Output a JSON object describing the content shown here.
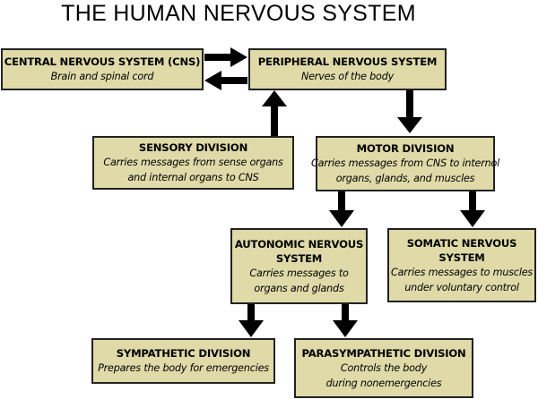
{
  "title": "THE HUMAN NERVOUS SYSTEM",
  "boxes": {
    "cns": {
      "head": [
        "CENTRAL NERVOUS SYSTEM (CNS)"
      ],
      "desc": [
        "Brain and spinal cord"
      ]
    },
    "pns": {
      "head": [
        "PERIPHERAL NERVOUS SYSTEM"
      ],
      "desc": [
        "Nerves of the body"
      ]
    },
    "sensory": {
      "head": [
        "SENSORY DIVISION"
      ],
      "desc": [
        "Carries messages from sense organs",
        "and internal organs to CNS"
      ]
    },
    "motor": {
      "head": [
        "MOTOR DIVISION"
      ],
      "desc": [
        "Carries messages from CNS to internol",
        "organs, glands, and muscles"
      ]
    },
    "autonomic": {
      "head": [
        "AUTONOMIC NERVOUS",
        "SYSTEM"
      ],
      "desc": [
        "Carries messages to",
        "organs and glands"
      ]
    },
    "somatic": {
      "head": [
        "SOMATIC NERVOUS",
        "SYSTEM"
      ],
      "desc": [
        "Carries messages to muscles",
        "under voluntary control"
      ]
    },
    "sympathetic": {
      "head": [
        "SYMPATHETIC DIVISION"
      ],
      "desc": [
        "Prepares the body for emergencies"
      ]
    },
    "parasympathetic": {
      "head": [
        "PARASYMPATHETIC DIVISION"
      ],
      "desc": [
        "Controls the body",
        "during nonemergencies"
      ]
    }
  },
  "colors": {
    "box_fill": "#dfdaa8",
    "box_border": "#222222",
    "arrow": "#000000"
  }
}
